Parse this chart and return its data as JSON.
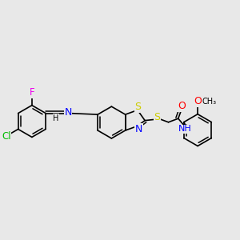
{
  "background_color": "#e8e8e8",
  "bond_color": "#000000",
  "atom_colors": {
    "N": "#0000ff",
    "S": "#cccc00",
    "O": "#ff0000",
    "Cl": "#00bb00",
    "F": "#ee00ee",
    "H": "#000000",
    "C": "#000000"
  },
  "font_size": 8
}
